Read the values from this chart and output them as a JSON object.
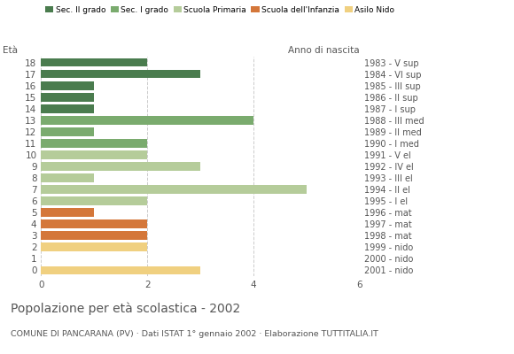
{
  "ages": [
    18,
    17,
    16,
    15,
    14,
    13,
    12,
    11,
    10,
    9,
    8,
    7,
    6,
    5,
    4,
    3,
    2,
    1,
    0
  ],
  "values": [
    2,
    3,
    1,
    1,
    1,
    4,
    1,
    2,
    2,
    3,
    1,
    5,
    2,
    1,
    2,
    2,
    2,
    0,
    3
  ],
  "right_labels": [
    "1983 - V sup",
    "1984 - VI sup",
    "1985 - III sup",
    "1986 - II sup",
    "1987 - I sup",
    "1988 - III med",
    "1989 - II med",
    "1990 - I med",
    "1991 - V el",
    "1992 - IV el",
    "1993 - III el",
    "1994 - II el",
    "1995 - I el",
    "1996 - mat",
    "1997 - mat",
    "1998 - mat",
    "1999 - nido",
    "2000 - nido",
    "2001 - nido"
  ],
  "colors_by_age": {
    "18": "#4a7c4e",
    "17": "#4a7c4e",
    "16": "#4a7c4e",
    "15": "#4a7c4e",
    "14": "#4a7c4e",
    "13": "#7aab6e",
    "12": "#7aab6e",
    "11": "#7aab6e",
    "10": "#b5cc9a",
    "9": "#b5cc9a",
    "8": "#b5cc9a",
    "7": "#b5cc9a",
    "6": "#b5cc9a",
    "5": "#d4773a",
    "4": "#d4773a",
    "3": "#d4773a",
    "2": "#f0d080",
    "1": "#f0d080",
    "0": "#f0d080"
  },
  "legend_labels": [
    "Sec. II grado",
    "Sec. I grado",
    "Scuola Primaria",
    "Scuola dell'Infanzia",
    "Asilo Nido"
  ],
  "legend_colors": [
    "#4a7c4e",
    "#7aab6e",
    "#b5cc9a",
    "#d4773a",
    "#f0d080"
  ],
  "xlim": [
    0,
    6
  ],
  "xticks": [
    0,
    2,
    4,
    6
  ],
  "eta_label": "Età",
  "anno_label": "Anno di nascita",
  "title": "Popolazione per età scolastica - 2002",
  "subtitle": "COMUNE DI PANCARANA (PV) · Dati ISTAT 1° gennaio 2002 · Elaborazione TUTTITALIA.IT",
  "grid_color": "#cccccc",
  "bar_height": 0.75,
  "background_color": "#ffffff",
  "text_color": "#555555"
}
